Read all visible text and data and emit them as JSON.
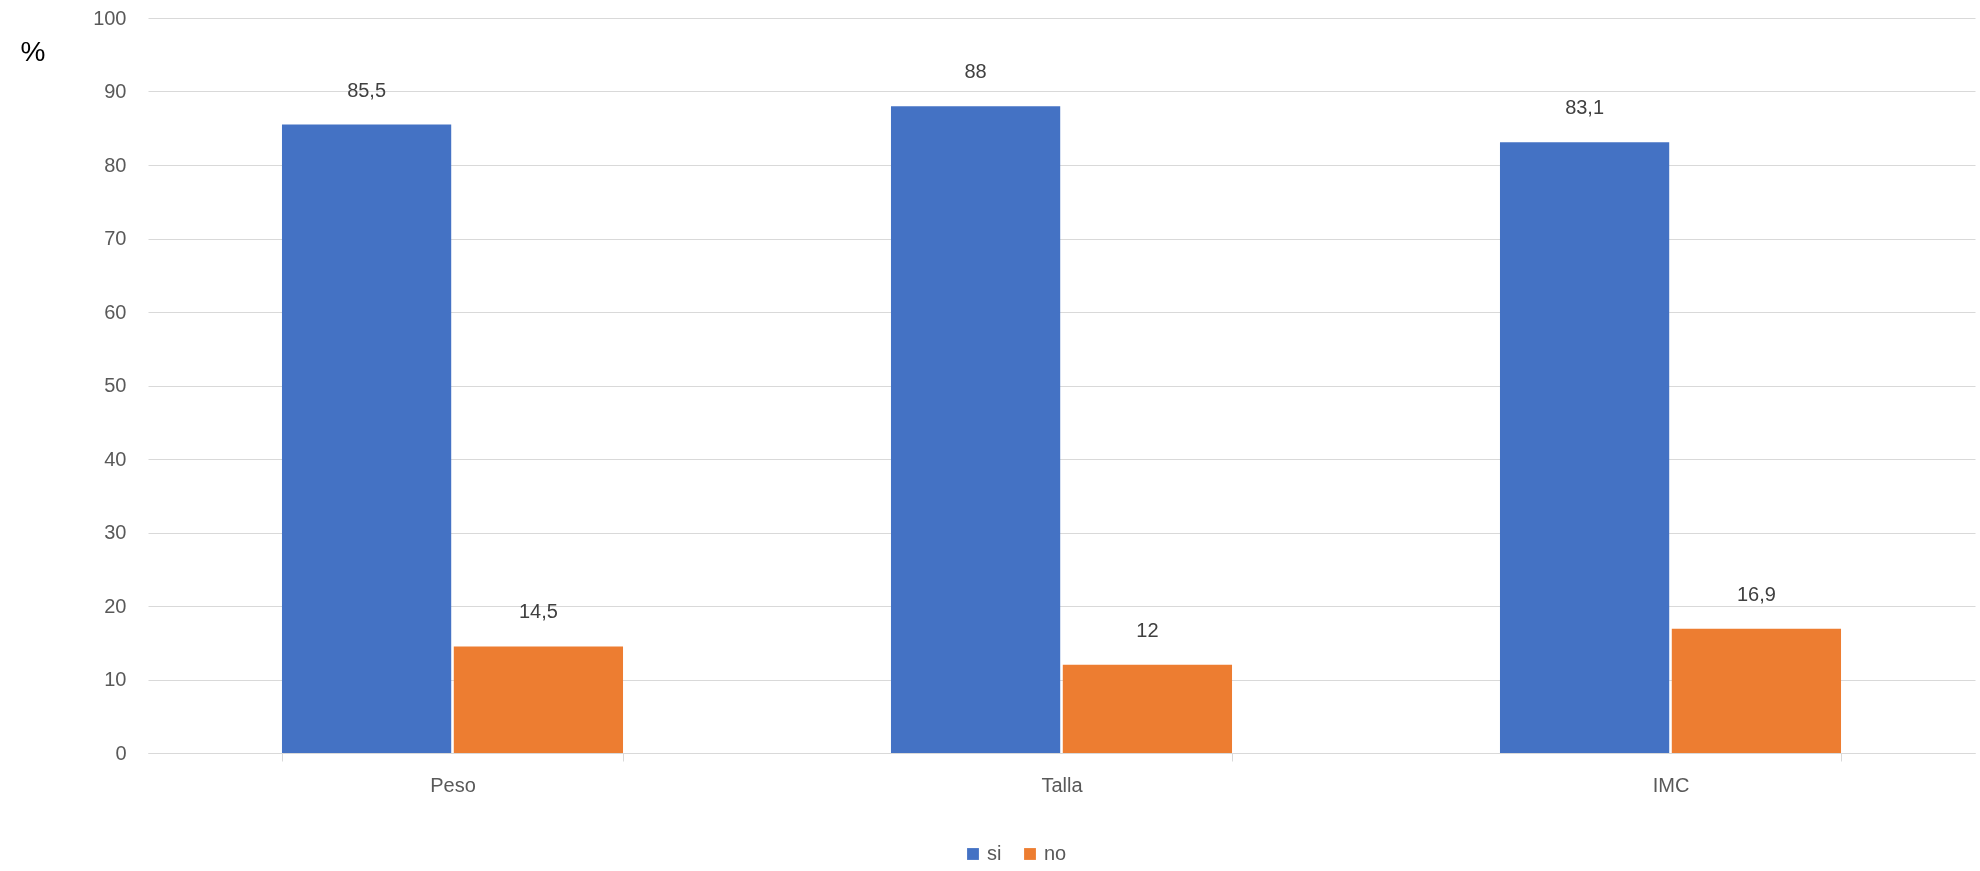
{
  "chart_data": {
    "type": "bar",
    "ylabel": "%",
    "categories": [
      "Peso",
      "Talla",
      "IMC"
    ],
    "series": [
      {
        "name": "si",
        "color": "#4472c4",
        "values": [
          85.5,
          88,
          83.1
        ],
        "value_labels": [
          "85,5",
          "88",
          "83,1"
        ]
      },
      {
        "name": "no",
        "color": "#ed7d31",
        "values": [
          14.5,
          12,
          16.9
        ],
        "value_labels": [
          "14,5",
          "12",
          "16,9"
        ]
      }
    ],
    "ylim": [
      0,
      100
    ],
    "yticks": [
      0,
      10,
      20,
      30,
      40,
      50,
      60,
      70,
      80,
      90,
      100
    ],
    "grid": "y",
    "legend": "bottom"
  }
}
